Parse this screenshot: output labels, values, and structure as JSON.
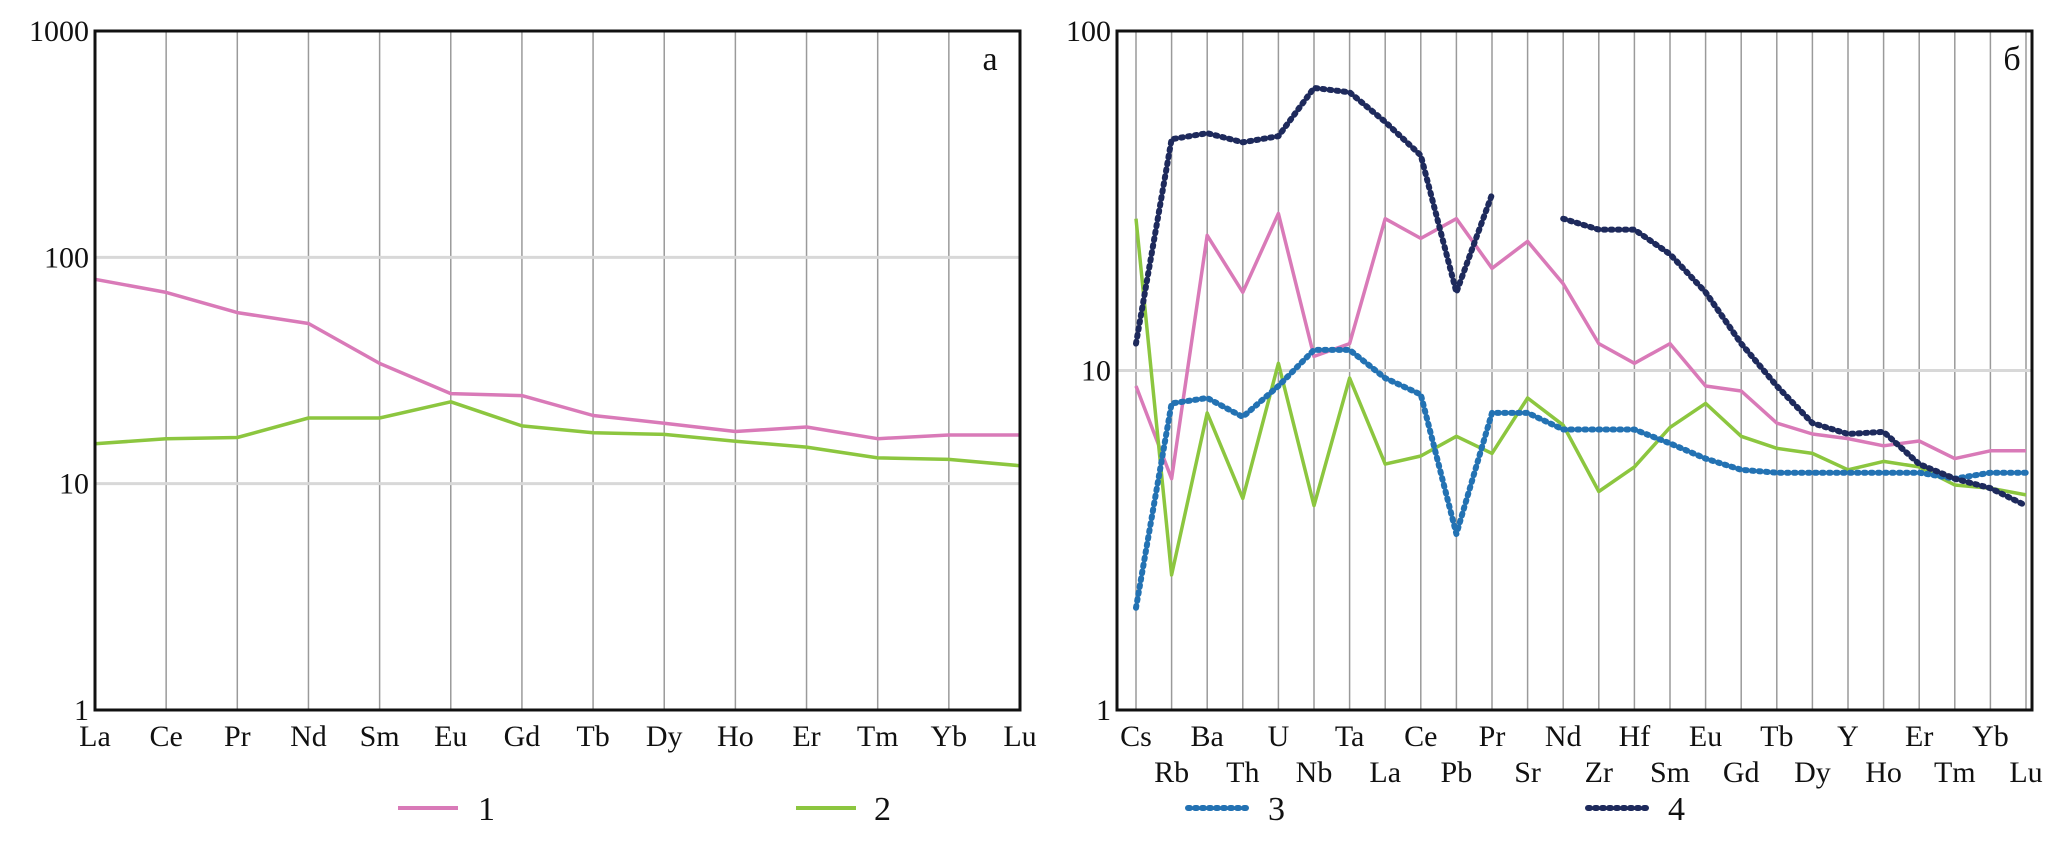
{
  "chart_data": [
    {
      "type": "line",
      "panel_label": "а",
      "y_scale": "log",
      "ylim": [
        1,
        1000
      ],
      "y_ticks": [
        "1",
        "10",
        "100",
        "1000"
      ],
      "categories": [
        "La",
        "Ce",
        "Pr",
        "Nd",
        "Sm",
        "Eu",
        "Gd",
        "Tb",
        "Dy",
        "Ho",
        "Er",
        "Tm",
        "Yb",
        "Lu"
      ],
      "gridlines_horizontal_at": [
        10,
        100
      ],
      "series": [
        {
          "name": "1",
          "color": "#d97ab8",
          "style": "solid",
          "values": [
            80,
            70,
            57,
            51,
            34,
            25,
            24.5,
            20,
            18.5,
            17,
            17.8,
            15.8,
            16.4,
            16.4
          ]
        },
        {
          "name": "2",
          "color": "#8cc63f",
          "style": "solid",
          "values": [
            15,
            15.8,
            16,
            19.5,
            19.5,
            23,
            18,
            16.8,
            16.5,
            15.4,
            14.5,
            13,
            12.8,
            12
          ]
        }
      ]
    },
    {
      "type": "line",
      "panel_label": "б",
      "y_scale": "log",
      "ylim": [
        1,
        100
      ],
      "y_ticks": [
        "1",
        "10",
        "100"
      ],
      "categories": [
        "Cs",
        "Rb",
        "Ba",
        "Th",
        "U",
        "Nb",
        "Ta",
        "La",
        "Ce",
        "Pb",
        "Pr",
        "Sr",
        "Nd",
        "Zr",
        "Hf",
        "Sm",
        "Eu",
        "Gd",
        "Tb",
        "Dy",
        "Y",
        "Ho",
        "Er",
        "Tm",
        "Yb",
        "Lu"
      ],
      "gridlines_horizontal_at": [
        10
      ],
      "series": [
        {
          "name": "1",
          "color": "#d97ab8",
          "style": "solid",
          "values": [
            9,
            4.8,
            25,
            17,
            29,
            11,
            12,
            28,
            24.5,
            28,
            20,
            24,
            18,
            12,
            10.5,
            12,
            9,
            8.7,
            7,
            6.5,
            6.3,
            6,
            6.2,
            5.5,
            5.8,
            5.8
          ]
        },
        {
          "name": "2",
          "color": "#8cc63f",
          "style": "solid",
          "values": [
            28,
            2.5,
            7.5,
            4.2,
            10.5,
            4,
            9.5,
            5.3,
            5.6,
            6.4,
            5.7,
            8.3,
            6.9,
            4.4,
            5.2,
            6.8,
            8,
            6.4,
            5.9,
            5.7,
            5.1,
            5.4,
            5.2,
            4.6,
            4.5,
            4.3
          ]
        },
        {
          "name": "3",
          "color": "#2372b3",
          "style": "dotted",
          "values": [
            2,
            8,
            8.3,
            7.3,
            9,
            11.5,
            11.5,
            9.5,
            8.5,
            3.3,
            7.5,
            7.5,
            6.7,
            6.7,
            6.7,
            6.1,
            5.5,
            5.1,
            5.0,
            5.0,
            5.0,
            5.0,
            5.0,
            4.8,
            5.0,
            5.0
          ]
        },
        {
          "name": "4",
          "color": "#1e2a5c",
          "style": "dotted",
          "values": [
            12,
            48,
            50,
            47,
            49,
            68,
            66,
            54,
            43,
            17,
            33,
            null,
            28,
            26,
            26,
            22,
            17,
            12,
            9,
            7,
            6.5,
            6.6,
            5.3,
            4.8,
            4.5,
            4.0
          ]
        }
      ]
    }
  ],
  "legend": [
    {
      "label": "1",
      "color": "#d97ab8",
      "style": "solid"
    },
    {
      "label": "2",
      "color": "#8cc63f",
      "style": "solid"
    },
    {
      "label": "3",
      "color": "#2372b3",
      "style": "dotted"
    },
    {
      "label": "4",
      "color": "#1e2a5c",
      "style": "dotted"
    }
  ]
}
